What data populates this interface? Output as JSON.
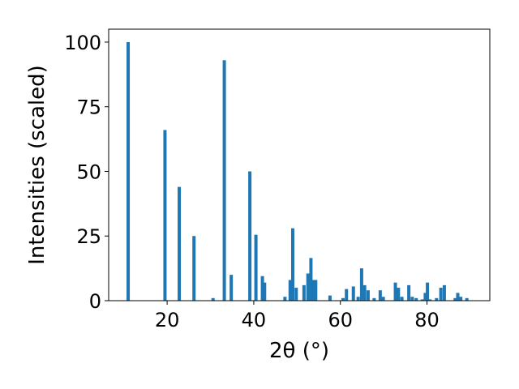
{
  "chart_data": {
    "type": "bar",
    "xlabel": "2θ (°)",
    "ylabel": "Intensities (scaled)",
    "xlim": [
      6.5,
      94.5
    ],
    "ylim": [
      0,
      105
    ],
    "xticks": [
      20,
      40,
      60,
      80
    ],
    "yticks": [
      0,
      25,
      50,
      75,
      100
    ],
    "bar_color": "#1f77b4",
    "grid": false,
    "bar_width": 0.75,
    "x": [
      11.0,
      19.5,
      22.8,
      26.2,
      30.6,
      33.2,
      34.8,
      39.1,
      40.5,
      42.0,
      42.5,
      47.2,
      48.4,
      49.0,
      49.8,
      51.6,
      52.5,
      53.2,
      53.7,
      54.3,
      57.6,
      60.6,
      61.4,
      63.0,
      64.1,
      64.9,
      65.6,
      66.4,
      67.8,
      69.2,
      69.9,
      72.7,
      73.4,
      74.2,
      75.8,
      76.6,
      77.5,
      78.9,
      79.6,
      80.1,
      80.7,
      82.2,
      83.2,
      84.0,
      86.5,
      87.1,
      87.8,
      89.2
    ],
    "values": [
      100,
      66,
      44,
      25,
      1,
      93,
      10,
      50,
      25.5,
      9.5,
      7,
      1.5,
      8,
      28,
      5,
      6,
      10.5,
      16.5,
      8,
      8,
      2,
      1,
      4.5,
      5.5,
      1.5,
      12.5,
      6,
      4,
      1,
      4,
      1.5,
      7,
      5,
      1.5,
      6,
      1.5,
      1,
      0.5,
      3,
      7,
      0.5,
      1,
      5,
      6,
      1,
      3,
      1.5,
      1
    ]
  }
}
